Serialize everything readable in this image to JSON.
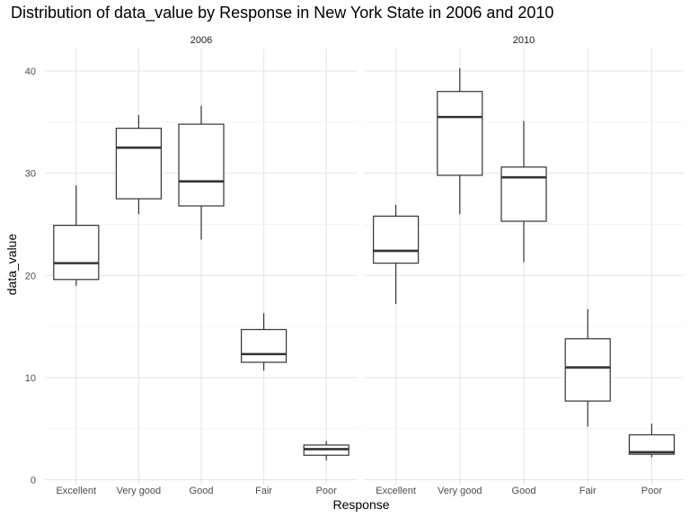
{
  "chart_data": {
    "type": "boxplot",
    "title": "Distribution of data_value by Response in New York State in 2006 and 2010",
    "xlabel": "Response",
    "ylabel": "data_value",
    "ylim": [
      0,
      42
    ],
    "yticks": [
      0,
      10,
      20,
      30,
      40
    ],
    "grid": true,
    "categories": [
      "Excellent",
      "Very good",
      "Good",
      "Fair",
      "Poor"
    ],
    "facets": [
      {
        "label": "2006",
        "boxes": [
          {
            "category": "Excellent",
            "min": 19.0,
            "q1": 19.6,
            "median": 21.2,
            "q3": 24.9,
            "max": 28.8
          },
          {
            "category": "Very good",
            "min": 26.0,
            "q1": 27.5,
            "median": 32.5,
            "q3": 34.4,
            "max": 35.7
          },
          {
            "category": "Good",
            "min": 23.5,
            "q1": 26.8,
            "median": 29.2,
            "q3": 34.8,
            "max": 36.6
          },
          {
            "category": "Fair",
            "min": 10.7,
            "q1": 11.5,
            "median": 12.3,
            "q3": 14.7,
            "max": 16.3
          },
          {
            "category": "Poor",
            "min": 1.9,
            "q1": 2.4,
            "median": 3.0,
            "q3": 3.4,
            "max": 3.8
          }
        ]
      },
      {
        "label": "2010",
        "boxes": [
          {
            "category": "Excellent",
            "min": 17.2,
            "q1": 21.2,
            "median": 22.4,
            "q3": 25.8,
            "max": 26.9
          },
          {
            "category": "Very good",
            "min": 26.0,
            "q1": 29.8,
            "median": 35.5,
            "q3": 38.0,
            "max": 40.3
          },
          {
            "category": "Good",
            "min": 21.3,
            "q1": 25.3,
            "median": 29.6,
            "q3": 30.6,
            "max": 35.1
          },
          {
            "category": "Fair",
            "min": 5.2,
            "q1": 7.7,
            "median": 11.0,
            "q3": 13.8,
            "max": 16.7
          },
          {
            "category": "Poor",
            "min": 2.2,
            "q1": 2.5,
            "median": 2.7,
            "q3": 4.4,
            "max": 5.5
          }
        ]
      }
    ]
  }
}
